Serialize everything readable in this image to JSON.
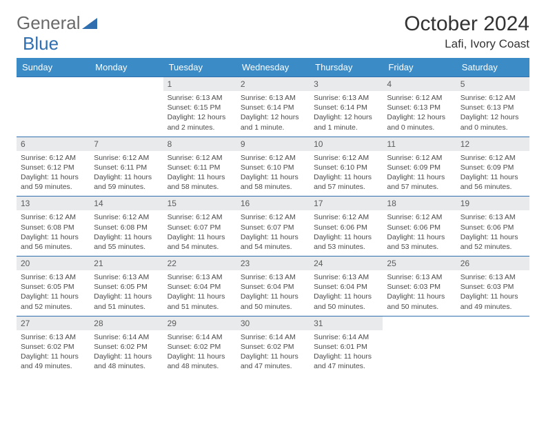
{
  "brand": {
    "word1": "General",
    "word2": "Blue"
  },
  "title": "October 2024",
  "location": "Lafi, Ivory Coast",
  "colors": {
    "header_bg": "#3b8bc7",
    "header_text": "#ffffff",
    "rule": "#2f6fb0",
    "daybar_bg": "#e9eaeb",
    "daybar_text": "#5a5a5a",
    "body_text": "#4a4a4a",
    "brand_grey": "#6a6a6a",
    "brand_blue": "#2f6fb0",
    "page_bg": "#ffffff"
  },
  "dayNames": [
    "Sunday",
    "Monday",
    "Tuesday",
    "Wednesday",
    "Thursday",
    "Friday",
    "Saturday"
  ],
  "grid": {
    "firstWeekday": 2,
    "daysInMonth": 31
  },
  "days": {
    "1": {
      "sunrise": "6:13 AM",
      "sunset": "6:15 PM",
      "daylight": "12 hours and 2 minutes."
    },
    "2": {
      "sunrise": "6:13 AM",
      "sunset": "6:14 PM",
      "daylight": "12 hours and 1 minute."
    },
    "3": {
      "sunrise": "6:13 AM",
      "sunset": "6:14 PM",
      "daylight": "12 hours and 1 minute."
    },
    "4": {
      "sunrise": "6:12 AM",
      "sunset": "6:13 PM",
      "daylight": "12 hours and 0 minutes."
    },
    "5": {
      "sunrise": "6:12 AM",
      "sunset": "6:13 PM",
      "daylight": "12 hours and 0 minutes."
    },
    "6": {
      "sunrise": "6:12 AM",
      "sunset": "6:12 PM",
      "daylight": "11 hours and 59 minutes."
    },
    "7": {
      "sunrise": "6:12 AM",
      "sunset": "6:11 PM",
      "daylight": "11 hours and 59 minutes."
    },
    "8": {
      "sunrise": "6:12 AM",
      "sunset": "6:11 PM",
      "daylight": "11 hours and 58 minutes."
    },
    "9": {
      "sunrise": "6:12 AM",
      "sunset": "6:10 PM",
      "daylight": "11 hours and 58 minutes."
    },
    "10": {
      "sunrise": "6:12 AM",
      "sunset": "6:10 PM",
      "daylight": "11 hours and 57 minutes."
    },
    "11": {
      "sunrise": "6:12 AM",
      "sunset": "6:09 PM",
      "daylight": "11 hours and 57 minutes."
    },
    "12": {
      "sunrise": "6:12 AM",
      "sunset": "6:09 PM",
      "daylight": "11 hours and 56 minutes."
    },
    "13": {
      "sunrise": "6:12 AM",
      "sunset": "6:08 PM",
      "daylight": "11 hours and 56 minutes."
    },
    "14": {
      "sunrise": "6:12 AM",
      "sunset": "6:08 PM",
      "daylight": "11 hours and 55 minutes."
    },
    "15": {
      "sunrise": "6:12 AM",
      "sunset": "6:07 PM",
      "daylight": "11 hours and 54 minutes."
    },
    "16": {
      "sunrise": "6:12 AM",
      "sunset": "6:07 PM",
      "daylight": "11 hours and 54 minutes."
    },
    "17": {
      "sunrise": "6:12 AM",
      "sunset": "6:06 PM",
      "daylight": "11 hours and 53 minutes."
    },
    "18": {
      "sunrise": "6:12 AM",
      "sunset": "6:06 PM",
      "daylight": "11 hours and 53 minutes."
    },
    "19": {
      "sunrise": "6:13 AM",
      "sunset": "6:06 PM",
      "daylight": "11 hours and 52 minutes."
    },
    "20": {
      "sunrise": "6:13 AM",
      "sunset": "6:05 PM",
      "daylight": "11 hours and 52 minutes."
    },
    "21": {
      "sunrise": "6:13 AM",
      "sunset": "6:05 PM",
      "daylight": "11 hours and 51 minutes."
    },
    "22": {
      "sunrise": "6:13 AM",
      "sunset": "6:04 PM",
      "daylight": "11 hours and 51 minutes."
    },
    "23": {
      "sunrise": "6:13 AM",
      "sunset": "6:04 PM",
      "daylight": "11 hours and 50 minutes."
    },
    "24": {
      "sunrise": "6:13 AM",
      "sunset": "6:04 PM",
      "daylight": "11 hours and 50 minutes."
    },
    "25": {
      "sunrise": "6:13 AM",
      "sunset": "6:03 PM",
      "daylight": "11 hours and 50 minutes."
    },
    "26": {
      "sunrise": "6:13 AM",
      "sunset": "6:03 PM",
      "daylight": "11 hours and 49 minutes."
    },
    "27": {
      "sunrise": "6:13 AM",
      "sunset": "6:02 PM",
      "daylight": "11 hours and 49 minutes."
    },
    "28": {
      "sunrise": "6:14 AM",
      "sunset": "6:02 PM",
      "daylight": "11 hours and 48 minutes."
    },
    "29": {
      "sunrise": "6:14 AM",
      "sunset": "6:02 PM",
      "daylight": "11 hours and 48 minutes."
    },
    "30": {
      "sunrise": "6:14 AM",
      "sunset": "6:02 PM",
      "daylight": "11 hours and 47 minutes."
    },
    "31": {
      "sunrise": "6:14 AM",
      "sunset": "6:01 PM",
      "daylight": "11 hours and 47 minutes."
    }
  },
  "labels": {
    "sunrise": "Sunrise:",
    "sunset": "Sunset:",
    "daylight": "Daylight:"
  }
}
